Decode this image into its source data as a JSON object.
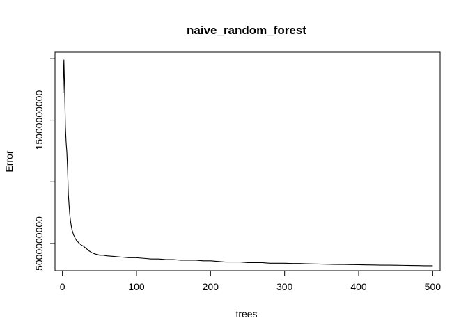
{
  "chart_data": {
    "type": "line",
    "title": "naive_random_forest",
    "xlabel": "trees",
    "ylabel": "Error",
    "xlim": [
      -10,
      510
    ],
    "ylim": [
      2800000000,
      20500000000
    ],
    "x_ticks": [
      0,
      100,
      200,
      300,
      400,
      500
    ],
    "x_tick_labels": [
      "0",
      "100",
      "200",
      "300",
      "400",
      "500"
    ],
    "y_ticks": [
      5000000000,
      10000000000,
      15000000000,
      20000000000
    ],
    "y_tick_labels": [
      "5000000000",
      "",
      "15000000000",
      ""
    ],
    "grid": false,
    "legend": "none",
    "line_color": "#000000",
    "series": [
      {
        "x": [
          1,
          2,
          3,
          4,
          5,
          6,
          7,
          8,
          9,
          10,
          11,
          12,
          13,
          14,
          15,
          16,
          17,
          18,
          19,
          20,
          22,
          24,
          26,
          28,
          30,
          33,
          36,
          40,
          44,
          48,
          50,
          55,
          60,
          70,
          80,
          90,
          100,
          110,
          120,
          130,
          140,
          150,
          160,
          170,
          180,
          190,
          200,
          210,
          220,
          230,
          240,
          250,
          260,
          270,
          280,
          290,
          300,
          310,
          320,
          330,
          340,
          350,
          360,
          370,
          380,
          390,
          400,
          410,
          420,
          430,
          440,
          450,
          460,
          470,
          480,
          490,
          500
        ],
        "values": [
          17200000000,
          19900000000,
          17500000000,
          14500000000,
          13200000000,
          12400000000,
          11000000000,
          9000000000,
          8100000000,
          7300000000,
          6800000000,
          6400000000,
          6100000000,
          5900000000,
          5700000000,
          5600000000,
          5450000000,
          5350000000,
          5250000000,
          5200000000,
          5050000000,
          4950000000,
          4850000000,
          4800000000,
          4700000000,
          4550000000,
          4400000000,
          4250000000,
          4150000000,
          4100000000,
          4050000000,
          4050000000,
          4000000000,
          3950000000,
          3900000000,
          3850000000,
          3850000000,
          3800000000,
          3750000000,
          3750000000,
          3700000000,
          3700000000,
          3650000000,
          3650000000,
          3650000000,
          3600000000,
          3600000000,
          3550000000,
          3500000000,
          3500000000,
          3500000000,
          3450000000,
          3450000000,
          3450000000,
          3400000000,
          3400000000,
          3400000000,
          3380000000,
          3380000000,
          3360000000,
          3350000000,
          3330000000,
          3320000000,
          3300000000,
          3300000000,
          3290000000,
          3280000000,
          3270000000,
          3260000000,
          3250000000,
          3250000000,
          3240000000,
          3230000000,
          3220000000,
          3210000000,
          3200000000,
          3200000000
        ]
      }
    ]
  }
}
